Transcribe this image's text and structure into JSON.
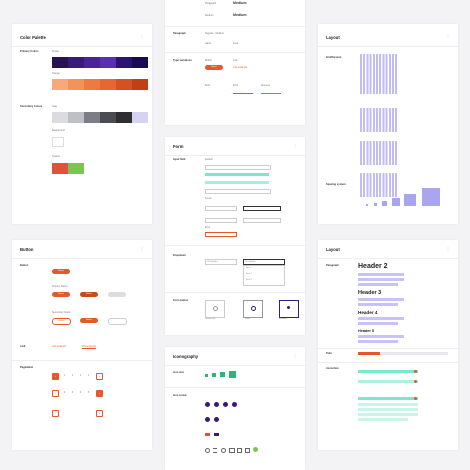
{
  "colors": {
    "brand": "#e05a2b",
    "purple": "#3a1a78",
    "violet": "#a9a6ef",
    "mint": "#79e8cd"
  },
  "typography": {
    "rows": [
      {
        "label": "Paragraph",
        "value": "Medium"
      },
      {
        "label": "Medium",
        "value": "Medium"
      }
    ],
    "paragraph_label": "Paragraph",
    "paragraph_value": "Regular - Medium",
    "input_label": "Label",
    "input_value": "Input",
    "type_variations_label": "Type variations",
    "button_label": "Button",
    "button_text": "Button",
    "link_label": "Link",
    "link_text": "Link example",
    "bold_label": "Bold",
    "error_label": "Error",
    "success_label": "Success"
  },
  "color_palette": {
    "title": "Color Palette",
    "menu": "⋮",
    "primary_label": "Primary Colors",
    "primary_desc": "Purple",
    "orange_label": "Orange",
    "secondary_label": "Secondary Colors",
    "secondary_desc": "Gray",
    "background_label": "Background",
    "system_label": "System"
  },
  "layout_top": {
    "title": "Layout",
    "menu": "⋮",
    "grid_label": "Grid/System",
    "spacing_label": "Spacing system"
  },
  "form": {
    "title": "Form",
    "menu": "⋮",
    "input_field_label": "Input field",
    "default_label": "Default",
    "focus_label": "Focus",
    "error_label": "Error",
    "dropdown_label": "Dropdown",
    "dropdown_value": "Placeholder",
    "radio_label": "Form button",
    "options": [
      "Item 1",
      "Item 2",
      "Item 3"
    ],
    "radio_options": [
      "Unselected",
      "Hover",
      "Selected"
    ]
  },
  "button_card": {
    "title": "Button",
    "menu": "⋮",
    "button_label": "Button",
    "button_text": "Button",
    "primary_label": "Primary button",
    "secondary_label": "Secondary button",
    "link_label": "Link",
    "link_text": "Link example",
    "pagination_label": "Pagination",
    "pages": [
      "1",
      "2",
      "3",
      "4",
      "5"
    ]
  },
  "iconography": {
    "title": "Iconography",
    "menu": "⋮",
    "size_label": "Icon size",
    "social_label": "Icon social"
  },
  "layout_bottom": {
    "title": "Layout",
    "menu": "⋮",
    "paragraph_label": "Paragraph",
    "tabs_label": "Tabs",
    "accordion_label": "Accordion",
    "headers": [
      "Header 2",
      "Header 3",
      "Header 4",
      "Header 5"
    ]
  }
}
